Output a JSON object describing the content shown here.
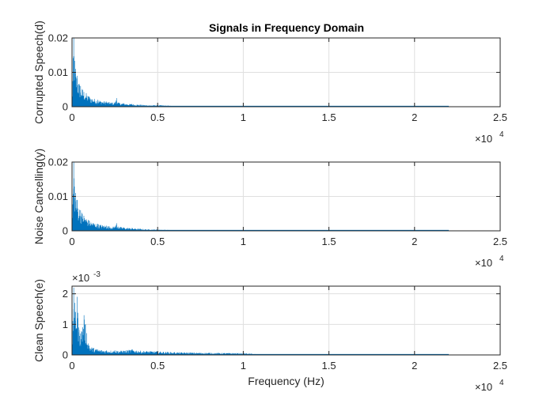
{
  "figure": {
    "title": "Signals in Frequency Domain",
    "line_color": "#0072BD",
    "axes_color": "#262626",
    "grid_color": "#dfdfdf"
  },
  "chart_data": [
    {
      "type": "line",
      "title": "Signals in Frequency Domain",
      "ylabel": "Corrupted Speech(d)",
      "xlabel": "",
      "xlim": [
        0,
        25000
      ],
      "ylim": [
        0,
        0.02
      ],
      "x_ticks": [
        0,
        5000,
        10000,
        15000,
        20000,
        25000
      ],
      "x_tick_labels": [
        "0",
        "0.5",
        "1",
        "1.5",
        "2",
        "2.5"
      ],
      "x_exponent_label": "×10",
      "x_exponent_power": "4",
      "y_ticks": [
        0,
        0.01,
        0.02
      ],
      "y_tick_labels": [
        "0",
        "0.01",
        "0.02"
      ],
      "grid": true,
      "series": [
        {
          "x": [
            0,
            100,
            200,
            300,
            500,
            1000,
            1500,
            2000,
            2500,
            2600,
            2700,
            3000,
            3500,
            4000,
            4500,
            5000,
            6000,
            8000,
            10000,
            12000,
            15000,
            18000,
            20000,
            22000
          ],
          "y": [
            0.001,
            0.02,
            0.011,
            0.009,
            0.006,
            0.003,
            0.002,
            0.0015,
            0.0012,
            0.0025,
            0.0012,
            0.001,
            0.0008,
            0.0006,
            0.0004,
            0.0005,
            0.0002,
            0.0001,
            0.0001,
            8e-05,
            6e-05,
            5e-05,
            5e-05,
            4e-05
          ]
        }
      ]
    },
    {
      "type": "line",
      "ylabel": "Noise Cancelling(y)",
      "xlabel": "",
      "xlim": [
        0,
        25000
      ],
      "ylim": [
        0,
        0.02
      ],
      "x_ticks": [
        0,
        5000,
        10000,
        15000,
        20000,
        25000
      ],
      "x_tick_labels": [
        "0",
        "0.5",
        "1",
        "1.5",
        "2",
        "2.5"
      ],
      "x_exponent_label": "×10",
      "x_exponent_power": "4",
      "y_ticks": [
        0,
        0.01,
        0.02
      ],
      "y_tick_labels": [
        "0",
        "0.01",
        "0.02"
      ],
      "grid": true,
      "series": [
        {
          "x": [
            0,
            100,
            200,
            300,
            500,
            1000,
            1500,
            2000,
            2500,
            2600,
            2700,
            3000,
            3500,
            4000,
            4500,
            5000,
            6000,
            8000,
            10000,
            12000,
            15000,
            18000,
            20000,
            22000
          ],
          "y": [
            0.001,
            0.02,
            0.011,
            0.009,
            0.006,
            0.003,
            0.002,
            0.0015,
            0.0012,
            0.0022,
            0.0012,
            0.001,
            0.0008,
            0.0006,
            0.0004,
            0.0004,
            0.0002,
            0.0001,
            0.0001,
            8e-05,
            6e-05,
            5e-05,
            5e-05,
            4e-05
          ]
        }
      ]
    },
    {
      "type": "line",
      "ylabel": "Clean Speech(e)",
      "xlabel": "Frequency (Hz)",
      "xlim": [
        0,
        25000
      ],
      "ylim": [
        0,
        0.00225
      ],
      "x_ticks": [
        0,
        5000,
        10000,
        15000,
        20000,
        25000
      ],
      "x_tick_labels": [
        "0",
        "0.5",
        "1",
        "1.5",
        "2",
        "2.5"
      ],
      "x_exponent_label": "×10",
      "x_exponent_power": "4",
      "y_ticks": [
        0,
        0.001,
        0.002
      ],
      "y_tick_labels": [
        "0",
        "1",
        "2"
      ],
      "y_exponent_label": "×10",
      "y_exponent_power": "-3",
      "grid": true,
      "series": [
        {
          "x": [
            0,
            100,
            200,
            300,
            400,
            500,
            700,
            1000,
            1500,
            2000,
            2500,
            3000,
            3500,
            4000,
            5000,
            6000,
            8000,
            10000,
            11000,
            12000,
            15000,
            18000,
            20000,
            22000
          ],
          "y": [
            0.0002,
            0.0022,
            0.0014,
            0.0019,
            0.0009,
            0.0007,
            0.0013,
            0.0003,
            0.00018,
            0.00015,
            0.00015,
            0.00014,
            0.00018,
            0.00014,
            0.00012,
            9e-05,
            7e-05,
            6e-05,
            2e-05,
            1e-05,
            1e-05,
            1e-05,
            1e-05,
            1e-05
          ]
        }
      ]
    }
  ]
}
